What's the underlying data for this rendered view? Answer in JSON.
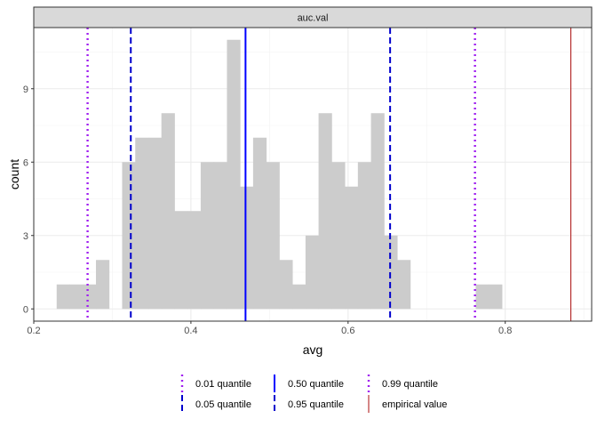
{
  "chart_data": {
    "type": "bar",
    "facet_label": "auc.val",
    "xlabel": "avg",
    "ylabel": "count",
    "xlim": [
      0.2,
      0.91
    ],
    "ylim": [
      -0.5,
      11.5
    ],
    "x_ticks": [
      0.2,
      0.4,
      0.6,
      0.8
    ],
    "x_tick_labels": [
      "0.2",
      "0.4",
      "0.6",
      "0.8"
    ],
    "y_ticks": [
      0,
      3,
      6,
      9
    ],
    "y_tick_labels": [
      "0",
      "3",
      "6",
      "9"
    ],
    "grid": true,
    "bin_width": 0.0167,
    "bins": [
      {
        "x": 0.2375,
        "count": 1
      },
      {
        "x": 0.2542,
        "count": 1
      },
      {
        "x": 0.2708,
        "count": 1
      },
      {
        "x": 0.2875,
        "count": 2
      },
      {
        "x": 0.3208,
        "count": 6
      },
      {
        "x": 0.3375,
        "count": 7
      },
      {
        "x": 0.3542,
        "count": 7
      },
      {
        "x": 0.3708,
        "count": 8
      },
      {
        "x": 0.3875,
        "count": 4
      },
      {
        "x": 0.4042,
        "count": 4
      },
      {
        "x": 0.4208,
        "count": 6
      },
      {
        "x": 0.4375,
        "count": 6
      },
      {
        "x": 0.4542,
        "count": 11
      },
      {
        "x": 0.4708,
        "count": 5
      },
      {
        "x": 0.4875,
        "count": 7
      },
      {
        "x": 0.5042,
        "count": 6
      },
      {
        "x": 0.5208,
        "count": 2
      },
      {
        "x": 0.5375,
        "count": 1
      },
      {
        "x": 0.5542,
        "count": 3
      },
      {
        "x": 0.5708,
        "count": 8
      },
      {
        "x": 0.5875,
        "count": 6
      },
      {
        "x": 0.6042,
        "count": 5
      },
      {
        "x": 0.6208,
        "count": 6
      },
      {
        "x": 0.6375,
        "count": 8
      },
      {
        "x": 0.6542,
        "count": 3
      },
      {
        "x": 0.6708,
        "count": 2
      },
      {
        "x": 0.7708,
        "count": 1
      },
      {
        "x": 0.7875,
        "count": 1
      }
    ],
    "reference_lines": [
      {
        "name": "0.01 quantile",
        "x": 0.2685,
        "color": "#a020f0",
        "style": "dotted"
      },
      {
        "name": "0.05 quantile",
        "x": 0.3235,
        "color": "#0000cd",
        "style": "dashed"
      },
      {
        "name": "0.50 quantile",
        "x": 0.4695,
        "color": "#0000ff",
        "style": "solid"
      },
      {
        "name": "0.95 quantile",
        "x": 0.6535,
        "color": "#0000cd",
        "style": "dashed"
      },
      {
        "name": "0.99 quantile",
        "x": 0.7615,
        "color": "#a020f0",
        "style": "dotted"
      },
      {
        "name": "empirical value",
        "x": 0.8835,
        "color": "#b22222",
        "style": "solid"
      }
    ],
    "bar_color": "#cccccc",
    "legend_position": "bottom"
  }
}
